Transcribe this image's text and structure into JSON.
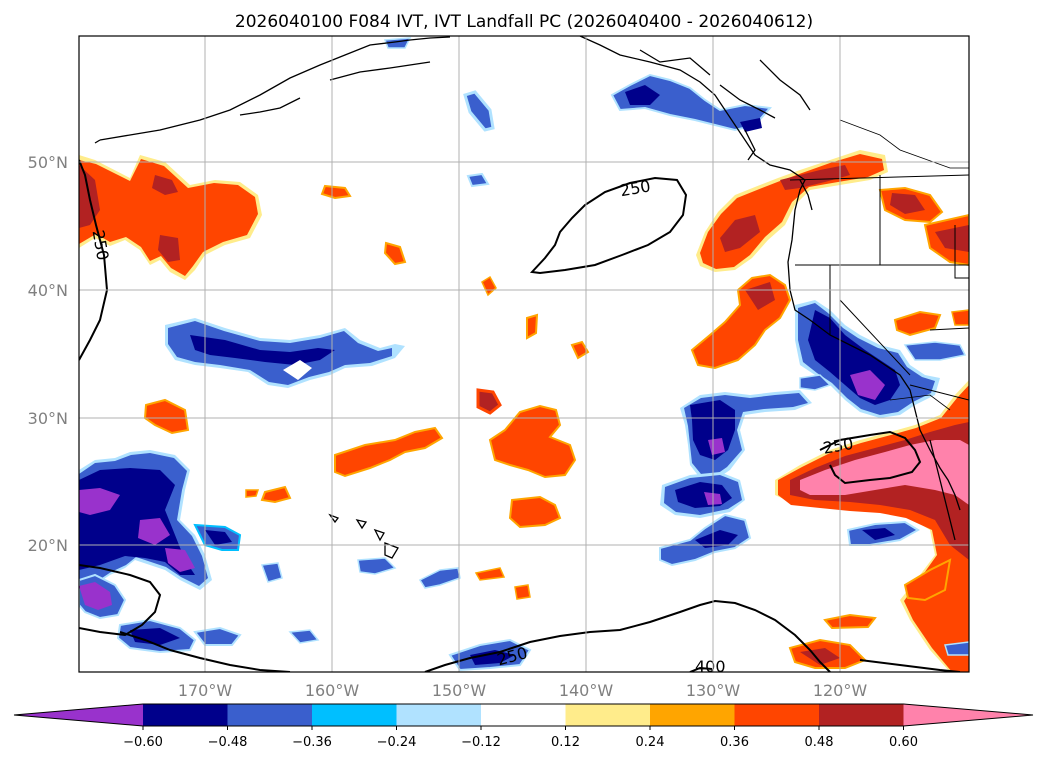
{
  "title": "2026040100 F084 IVT, IVT Landfall PC (2026040400 - 2026040612)",
  "map": {
    "lat_labels": [
      "50°N",
      "40°N",
      "30°N",
      "20°N"
    ],
    "lon_labels": [
      "170°W",
      "160°W",
      "150°W",
      "140°W",
      "130°W",
      "120°W"
    ],
    "lat_range": [
      10,
      60
    ],
    "lon_range": [
      -180,
      -110
    ],
    "contour_labels": [
      "250",
      "250",
      "250",
      "250",
      "400"
    ]
  },
  "colorbar": {
    "ticks": [
      "−0.60",
      "−0.48",
      "−0.36",
      "−0.24",
      "−0.12",
      "0.12",
      "0.24",
      "0.36",
      "0.48",
      "0.60"
    ],
    "levels": [
      -0.6,
      -0.48,
      -0.36,
      -0.24,
      -0.12,
      0.12,
      0.24,
      0.36,
      0.48,
      0.6
    ],
    "colors": [
      "#9932cc",
      "#00008b",
      "#3a5fcd",
      "#00bfff",
      "#b0e2ff",
      "#ffffff",
      "#ffec8b",
      "#ffa500",
      "#ff4500",
      "#b22222",
      "#ff82ab"
    ]
  },
  "colors": {
    "neg_purple": "#9932cc",
    "neg_navy": "#00008b",
    "neg_blue": "#3a5fcd",
    "neg_sky": "#00bfff",
    "neg_light": "#b0e2ff",
    "pos_yellow": "#ffec8b",
    "pos_orange": "#ffa500",
    "pos_red": "#ff4500",
    "pos_dark": "#b22222",
    "pos_pink": "#ff82ab",
    "grid": "#b0b0b0"
  }
}
